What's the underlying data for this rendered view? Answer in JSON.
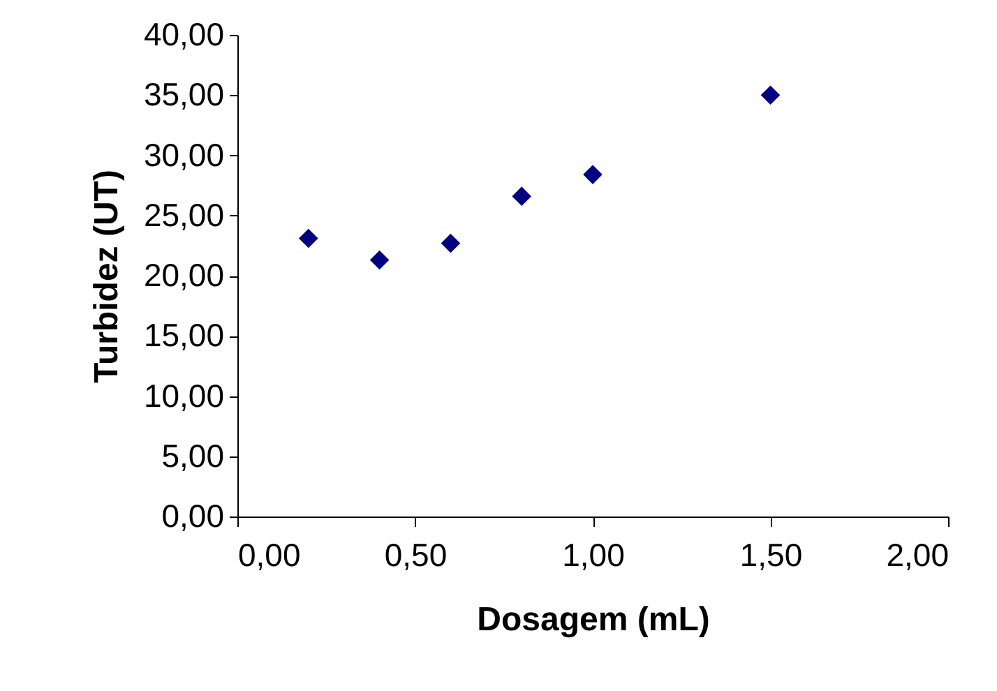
{
  "chart_data": {
    "type": "scatter",
    "xlabel": "Dosagem (mL)",
    "ylabel": "Turbidez (UT)",
    "x": [
      0.2,
      0.4,
      0.6,
      0.8,
      1.0,
      1.5
    ],
    "series": [
      {
        "color": "#000080",
        "values": [
          23.1,
          21.3,
          22.7,
          26.6,
          28.4,
          35.0
        ]
      }
    ],
    "xlim": [
      0,
      2
    ],
    "ylim": [
      0,
      40
    ],
    "xticks": [
      {
        "value": 0,
        "label": "0,00"
      },
      {
        "value": 0.5,
        "label": "0,50"
      },
      {
        "value": 1,
        "label": "1,00"
      },
      {
        "value": 1.5,
        "label": "1,50"
      },
      {
        "value": 2,
        "label": "2,00"
      }
    ],
    "yticks": [
      {
        "value": 0,
        "label": "0,00"
      },
      {
        "value": 5,
        "label": "5,00"
      },
      {
        "value": 10,
        "label": "10,00"
      },
      {
        "value": 15,
        "label": "15,00"
      },
      {
        "value": 20,
        "label": "20,00"
      },
      {
        "value": 25,
        "label": "25,00"
      },
      {
        "value": 30,
        "label": "30,00"
      },
      {
        "value": 35,
        "label": "35,00"
      },
      {
        "value": 40,
        "label": "40,00"
      }
    ],
    "marker": "diamond"
  }
}
